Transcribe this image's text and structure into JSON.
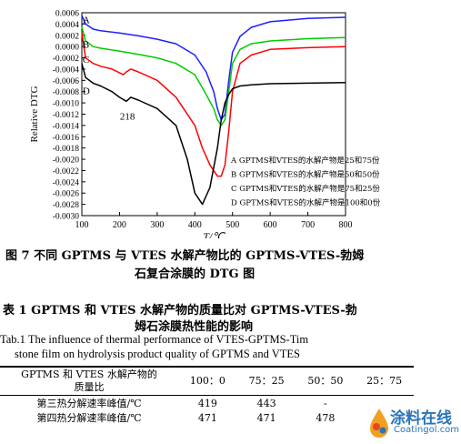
{
  "chart_data": {
    "type": "line",
    "ylabel": "Relative DTG",
    "xlabel": "T/℃",
    "xlim": [
      100,
      800
    ],
    "ylim": [
      -0.003,
      0.0006
    ],
    "x_ticks": [
      "100",
      "200",
      "300",
      "400",
      "500",
      "600",
      "700",
      "800"
    ],
    "y_ticks": [
      "0.0006",
      "0.0004",
      "0.0002",
      "0.0000",
      "-0.0002",
      "-0.0004",
      "-0.0006",
      "-0.0008",
      "-0.0010",
      "-0.0012",
      "-0.0014",
      "-0.0016",
      "-0.0018",
      "-0.0020",
      "-0.0022",
      "-0.0024",
      "-0.0026",
      "-0.0028",
      "-0.0030"
    ],
    "annotation": "218",
    "series": [
      {
        "name": "A",
        "color": "#1f1fff",
        "x": [
          100,
          110,
          130,
          150,
          200,
          250,
          300,
          350,
          400,
          430,
          450,
          460,
          470,
          480,
          490,
          500,
          520,
          550,
          600,
          700,
          800
        ],
        "y": [
          0.00055,
          0.0004,
          0.00031,
          0.00028,
          0.00024,
          0.00019,
          0.00013,
          5e-05,
          -0.00015,
          -0.00045,
          -0.0008,
          -0.0011,
          -0.0013,
          -0.0012,
          -0.0006,
          -0.0001,
          0.00018,
          0.00034,
          0.00044,
          0.0005,
          0.00052
        ]
      },
      {
        "name": "B",
        "color": "#00cc00",
        "x": [
          100,
          110,
          130,
          150,
          200,
          250,
          300,
          350,
          400,
          430,
          450,
          460,
          470,
          480,
          490,
          500,
          520,
          550,
          600,
          700,
          800
        ],
        "y": [
          0.00035,
          0.0001,
          0.0,
          -3e-05,
          -8e-05,
          -0.00014,
          -0.0002,
          -0.0003,
          -0.0005,
          -0.00085,
          -0.0011,
          -0.0013,
          -0.0014,
          -0.0013,
          -0.0008,
          -0.0003,
          -5e-05,
          5e-05,
          0.0001,
          0.00014,
          0.00016
        ]
      },
      {
        "name": "C",
        "color": "#ff0000",
        "x": [
          100,
          110,
          130,
          150,
          180,
          210,
          218,
          230,
          250,
          300,
          350,
          400,
          420,
          440,
          460,
          470,
          480,
          490,
          500,
          520,
          550,
          600,
          700,
          800
        ],
        "y": [
          0.00025,
          -0.0002,
          -0.0003,
          -0.00035,
          -0.0004,
          -0.0005,
          -0.00045,
          -0.0004,
          -0.00045,
          -0.0006,
          -0.0009,
          -0.0014,
          -0.0018,
          -0.0021,
          -0.0023,
          -0.0023,
          -0.0021,
          -0.0015,
          -0.0008,
          -0.0003,
          -0.00015,
          -5e-05,
          -2e-05,
          0.0
        ]
      },
      {
        "name": "D",
        "color": "#000000",
        "x": [
          100,
          110,
          130,
          150,
          180,
          200,
          218,
          230,
          250,
          300,
          350,
          380,
          400,
          420,
          440,
          460,
          470,
          480,
          490,
          500,
          520,
          550,
          600,
          700,
          800
        ],
        "y": [
          -0.0003,
          -0.00055,
          -0.00065,
          -0.0007,
          -0.0008,
          -0.0009,
          -0.00097,
          -0.0009,
          -0.00095,
          -0.0011,
          -0.0014,
          -0.002,
          -0.0026,
          -0.0028,
          -0.0025,
          -0.0018,
          -0.0013,
          -0.001,
          -0.00085,
          -0.00075,
          -0.0007,
          -0.00068,
          -0.00066,
          -0.00065,
          -0.00064
        ]
      }
    ],
    "legend": [
      "A GPTMS和VTES的水解产物是25和75份",
      "B GPTMS和VTES的水解产物是50和50份",
      "C GPTMS和VTES的水解产物是75和25份",
      "D GPTMS和VTES的水解产物是100和0份"
    ]
  },
  "figure_caption_line1": "图 7  不同 GPTMS 与 VTES 水解产物比的 GPTMS-VTES-勃姆",
  "figure_caption_line2": "石复合涂膜的 DTG 图",
  "table_title_line1": "表 1  GPTMS 和 VTES 水解产物的质量比对 GPTMS-VTES-勃",
  "table_title_line2": "姆石涂膜热性能的影响",
  "table_title_en_line1": "Tab.1   The influence of thermal performance of VTES-GPTMS-Tim",
  "table_title_en_line2": "stone film on hydrolysis product quality of GPTMS and VTES",
  "table": {
    "header_line1": "GPTMS 和 VTES 水解产物的",
    "header_line2": "质量比",
    "columns": [
      "100：0",
      "75：25",
      "50：50",
      "25：75"
    ],
    "rows": [
      {
        "label": "第三热分解速率峰值/℃",
        "values": [
          "419",
          "443",
          "-",
          ""
        ]
      },
      {
        "label": "第四热分解速率峰值/℃",
        "values": [
          "471",
          "471",
          "478",
          ""
        ]
      }
    ]
  },
  "watermark": {
    "text": "涂料在线",
    "url": "Coatingol.com"
  }
}
